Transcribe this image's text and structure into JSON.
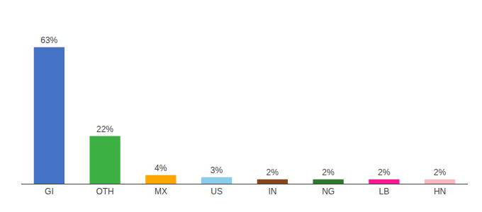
{
  "chart_data": {
    "type": "bar",
    "categories": [
      "GI",
      "OTH",
      "MX",
      "US",
      "IN",
      "NG",
      "LB",
      "HN"
    ],
    "values": [
      63,
      22,
      4,
      3,
      2,
      2,
      2,
      2
    ],
    "value_labels": [
      "63%",
      "22%",
      "4%",
      "3%",
      "2%",
      "2%",
      "2%",
      "2%"
    ],
    "colors": [
      "#4472C4",
      "#3CB043",
      "#FFA500",
      "#87CEEB",
      "#8B4513",
      "#2D7A2D",
      "#FF1493",
      "#FFB6C1"
    ],
    "ylim": [
      0,
      75
    ],
    "grid": false,
    "data_labels": true,
    "tick_labels": "x"
  }
}
